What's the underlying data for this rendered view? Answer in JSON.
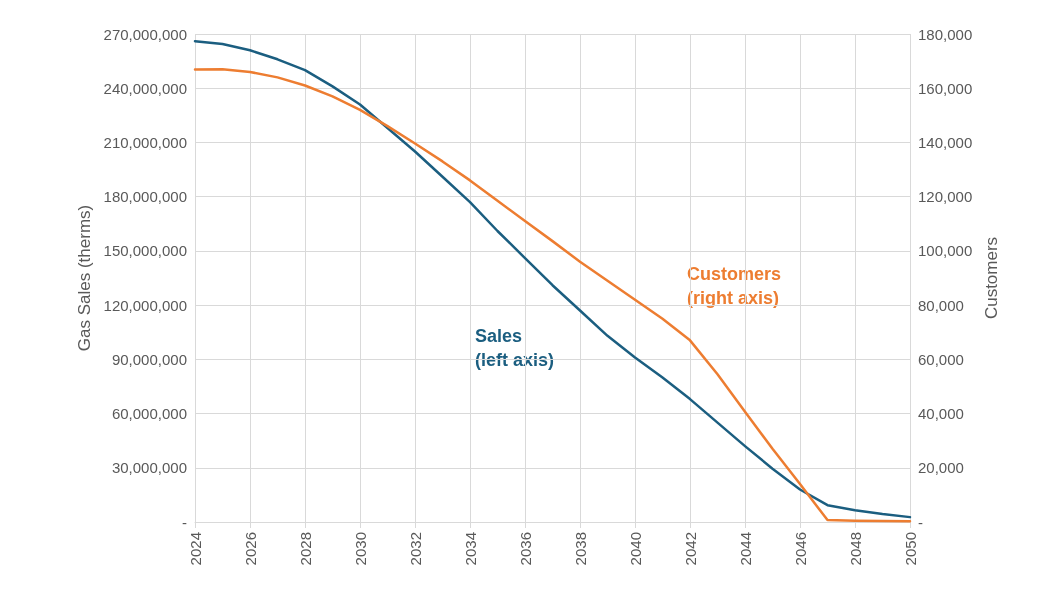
{
  "chart_data": {
    "type": "line",
    "xlabel": null,
    "ylabel": "Gas Sales (therms)",
    "y2label": "Customers",
    "x": [
      2024,
      2025,
      2026,
      2027,
      2028,
      2029,
      2030,
      2031,
      2032,
      2033,
      2034,
      2035,
      2036,
      2037,
      2038,
      2039,
      2040,
      2041,
      2042,
      2043,
      2044,
      2045,
      2046,
      2047,
      2048,
      2049,
      2050
    ],
    "series": [
      {
        "color": "#1b5e80",
        "axis": "y",
        "values": [
          266000000,
          264500000,
          261000000,
          256000000,
          250000000,
          241000000,
          231000000,
          218000000,
          205000000,
          191000000,
          177000000,
          161000000,
          146000000,
          131000000,
          117000000,
          103000000,
          91000000,
          80000000,
          68000000,
          55000000,
          42000000,
          29500000,
          18000000,
          9300000,
          6500000,
          4400000,
          2700000
        ]
      },
      {
        "color": "#ed7d31",
        "axis": "y2",
        "values": [
          166900,
          167000,
          166000,
          164000,
          161000,
          157000,
          152000,
          146000,
          139600,
          133000,
          126000,
          118500,
          111000,
          103600,
          96000,
          89000,
          82000,
          75000,
          67000,
          54500,
          40700,
          27000,
          14000,
          700,
          500,
          400,
          300
        ]
      }
    ],
    "annotations": [
      "Sales\n(left axis)",
      "Customers\n(right axis)"
    ],
    "xlim": [
      2024,
      2050
    ],
    "xticks": [
      2024,
      2026,
      2028,
      2030,
      2032,
      2034,
      2036,
      2038,
      2040,
      2042,
      2044,
      2046,
      2048,
      2050
    ],
    "ylim": [
      0,
      270000000
    ],
    "yticks": [
      {
        "value": 0,
        "label": "-"
      },
      {
        "value": 30000000,
        "label": "30,000,000"
      },
      {
        "value": 60000000,
        "label": "60,000,000"
      },
      {
        "value": 90000000,
        "label": "90,000,000"
      },
      {
        "value": 120000000,
        "label": "120,000,000"
      },
      {
        "value": 150000000,
        "label": "150,000,000"
      },
      {
        "value": 180000000,
        "label": "180,000,000"
      },
      {
        "value": 210000000,
        "label": "210,000,000"
      },
      {
        "value": 240000000,
        "label": "240,000,000"
      },
      {
        "value": 270000000,
        "label": "270,000,000"
      }
    ],
    "y2lim": [
      0,
      180000
    ],
    "y2ticks": [
      {
        "value": 0,
        "label": "-"
      },
      {
        "value": 20000,
        "label": "20,000"
      },
      {
        "value": 40000,
        "label": "40,000"
      },
      {
        "value": 60000,
        "label": "60,000"
      },
      {
        "value": 80000,
        "label": "80,000"
      },
      {
        "value": 100000,
        "label": "100,000"
      },
      {
        "value": 120000,
        "label": "120,000"
      },
      {
        "value": 140000,
        "label": "140,000"
      },
      {
        "value": 160000,
        "label": "160,000"
      },
      {
        "value": 180000,
        "label": "180,000"
      }
    ],
    "grid": true,
    "legend": false,
    "marker": "none",
    "line_style": "solid"
  }
}
